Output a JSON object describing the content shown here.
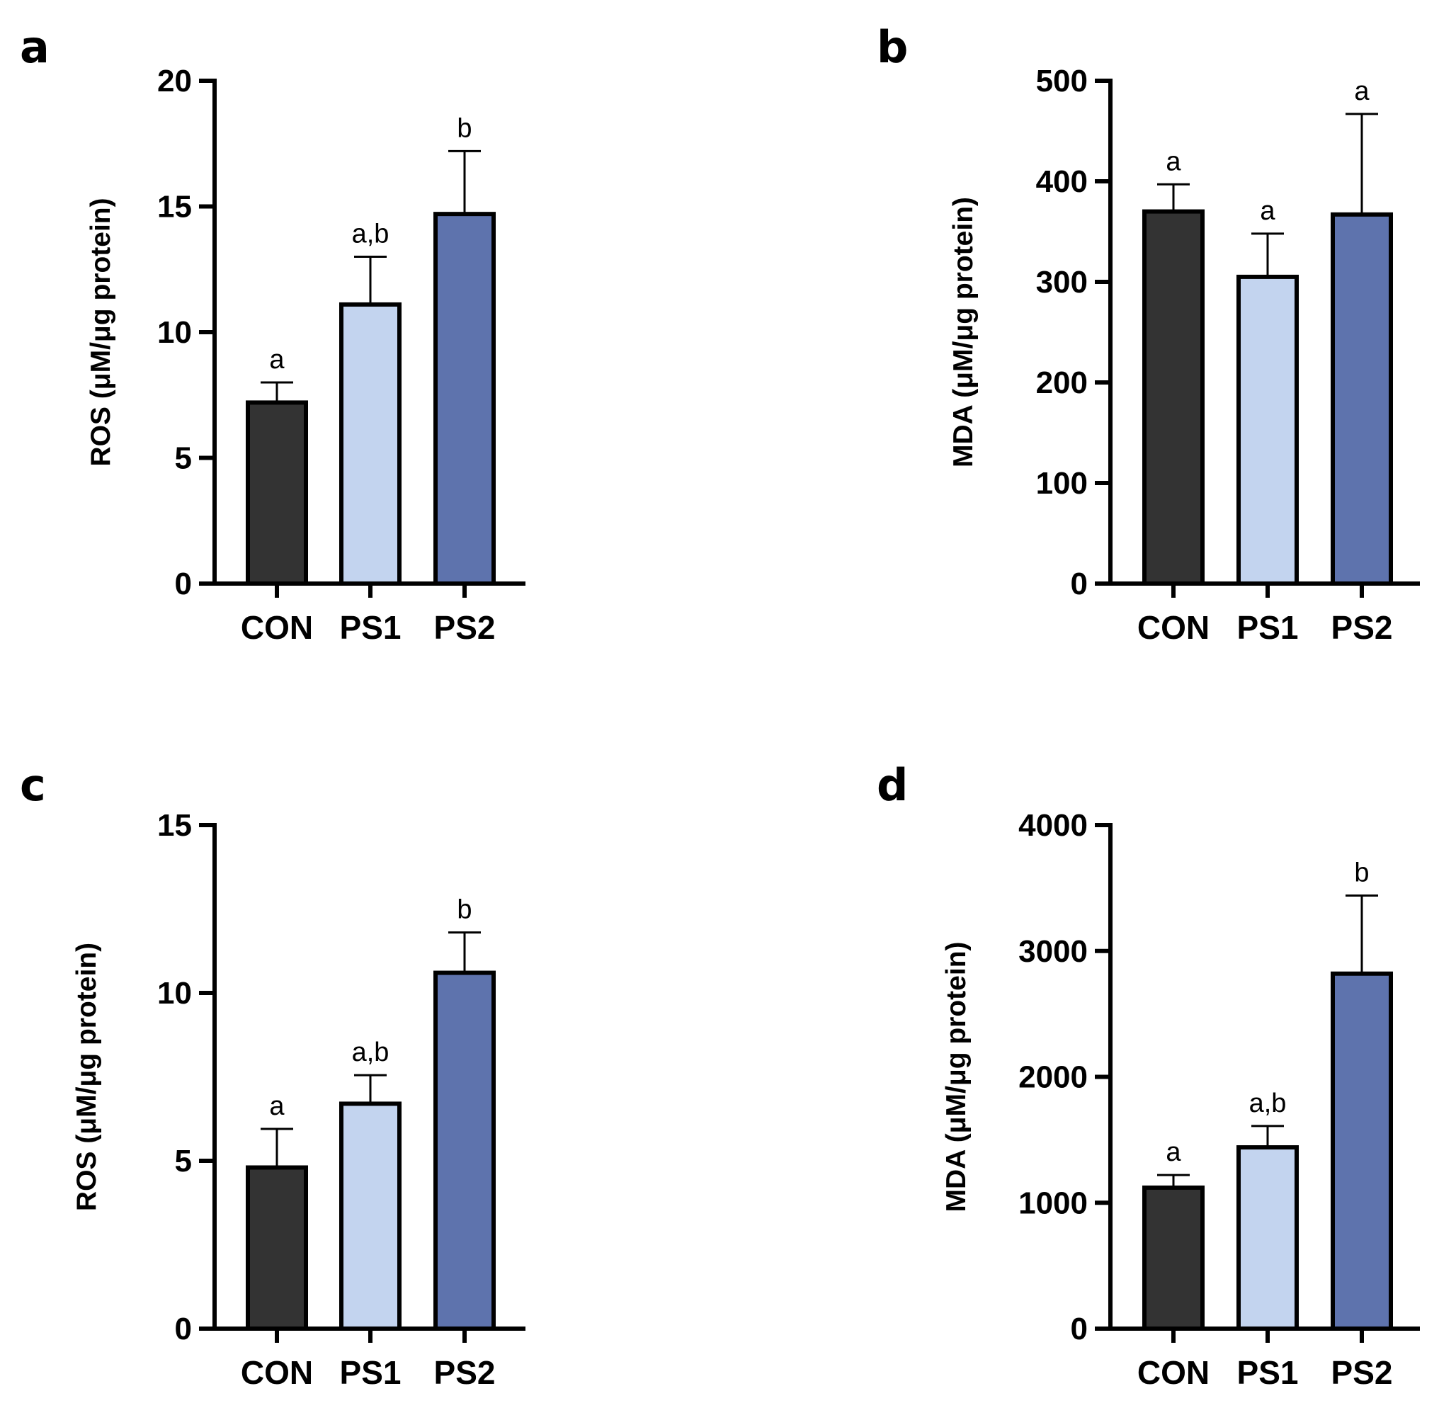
{
  "chart_data": [
    {
      "panel": "a",
      "type": "bar",
      "categories": [
        "CON",
        "PS1",
        "PS2"
      ],
      "values": [
        7.2,
        11.1,
        14.7
      ],
      "error_plus": [
        0.8,
        1.9,
        2.5
      ],
      "significance": [
        "a",
        "a,b",
        "b"
      ],
      "ylabel": "ROS (μM/μg protein)",
      "ylim": [
        0,
        20
      ],
      "yticks": [
        0,
        5,
        10,
        15,
        20
      ],
      "colors": [
        "#333333",
        "#c3d4ef",
        "#5e73ad"
      ]
    },
    {
      "panel": "b",
      "type": "bar",
      "categories": [
        "CON",
        "PS1",
        "PS2"
      ],
      "values": [
        370,
        305,
        367
      ],
      "error_plus": [
        27,
        43,
        100
      ],
      "significance": [
        "a",
        "a",
        "a"
      ],
      "ylabel": "MDA (μM/μg protein)",
      "ylim": [
        0,
        500
      ],
      "yticks": [
        0,
        100,
        200,
        300,
        400,
        500
      ],
      "colors": [
        "#333333",
        "#c3d4ef",
        "#5e73ad"
      ]
    },
    {
      "panel": "c",
      "type": "bar",
      "categories": [
        "CON",
        "PS1",
        "PS2"
      ],
      "values": [
        4.8,
        6.7,
        10.6
      ],
      "error_plus": [
        1.15,
        0.85,
        1.2
      ],
      "significance": [
        "a",
        "a,b",
        "b"
      ],
      "ylabel": "ROS (μM/μg protein)",
      "ylim": [
        0,
        15
      ],
      "yticks": [
        0,
        5,
        10,
        15
      ],
      "colors": [
        "#333333",
        "#c3d4ef",
        "#5e73ad"
      ]
    },
    {
      "panel": "d",
      "type": "bar",
      "categories": [
        "CON",
        "PS1",
        "PS2"
      ],
      "values": [
        1120,
        1440,
        2820
      ],
      "error_plus": [
        100,
        170,
        620
      ],
      "significance": [
        "a",
        "a,b",
        "b"
      ],
      "ylabel": "MDA (μM/μg protein)",
      "ylim": [
        0,
        4000
      ],
      "yticks": [
        0,
        1000,
        2000,
        3000,
        4000
      ],
      "colors": [
        "#333333",
        "#c3d4ef",
        "#5e73ad"
      ]
    }
  ]
}
